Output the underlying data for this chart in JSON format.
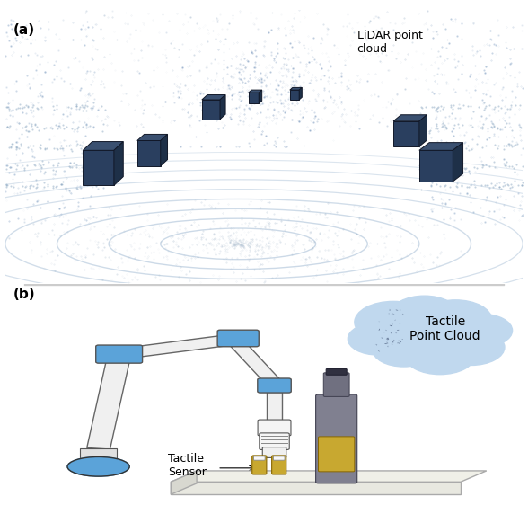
{
  "figure_width": 5.88,
  "figure_height": 5.62,
  "dpi": 100,
  "background_color": "#ffffff",
  "panel_a_label": "(a)",
  "panel_b_label": "(b)",
  "panel_a_annotation": "LiDAR point\ncloud",
  "panel_b_annotation1": "Tactile\nPoint Cloud",
  "panel_b_annotation2": "Tactile\nSensor",
  "label_fontsize": 11,
  "annotation_fontsize": 9,
  "lidar_bg": "#dde8f5",
  "lidar_ring_color": "#a0b8d8",
  "lidar_point_color": "#8899bb",
  "robot_blue": "#5ba3d9",
  "robot_arm_color": "#f0f0f0",
  "robot_arm_outline": "#666666",
  "bottle_color": "#808090",
  "bottle_label_color": "#c8a830",
  "table_color": "#e8e8e0",
  "cloud_color": "#c0d8ee",
  "sensor_color": "#c8a830",
  "box_color": "#2a3f5f",
  "ground_ring_color": "#9ab5d0"
}
